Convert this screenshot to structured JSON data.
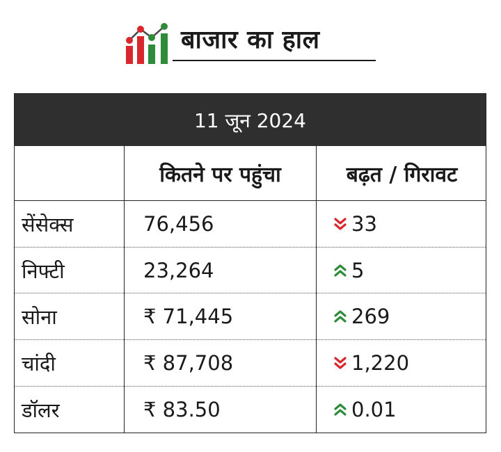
{
  "header": {
    "title": "बाजार का हाल",
    "logo_icon": "market-chart-icon",
    "logo_colors": {
      "red": "#d9272e",
      "green": "#2e8b3a",
      "line": "#444444"
    }
  },
  "table": {
    "date": "11 जून 2024",
    "columns": [
      "",
      "कितने पर पहुंचा",
      "बढ़त / गिरावट"
    ],
    "rows": [
      {
        "name": "सेंसेक्स",
        "value": "76,456",
        "direction": "down",
        "change": "33"
      },
      {
        "name": "निफ्टी",
        "value": "23,264",
        "direction": "up",
        "change": "5"
      },
      {
        "name": "सोना",
        "value": "₹ 71,445",
        "direction": "up",
        "change": "269"
      },
      {
        "name": "चांदी",
        "value": "₹ 87,708",
        "direction": "down",
        "change": "1,220"
      },
      {
        "name": "डॉलर",
        "value": "₹ 83.50",
        "direction": "up",
        "change": "0.01"
      }
    ],
    "colors": {
      "header_bg": "#2f2f2f",
      "up": "#2e8b3a",
      "down": "#d9272e"
    }
  }
}
